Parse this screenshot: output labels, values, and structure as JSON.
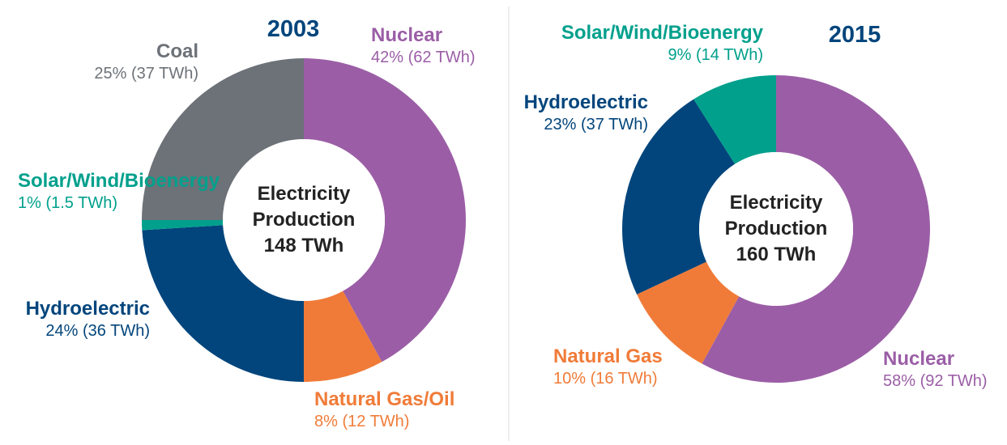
{
  "chart_data": [
    {
      "type": "donut",
      "title": "2003",
      "center_label": "Electricity Production",
      "total_label": "148 TWh",
      "categories": [
        "Nuclear",
        "Natural Gas/Oil",
        "Hydroelectric",
        "Solar/Wind/Bioenergy",
        "Coal"
      ],
      "values": [
        42,
        8,
        24,
        1,
        25
      ],
      "value_labels": [
        "42% (62 TWh)",
        "8% (12 TWh)",
        "24% (36 TWh)",
        "1% (1.5 TWh)",
        "25% (37 TWh)"
      ],
      "colors": [
        "#9b5ea6",
        "#f07b38",
        "#02457c",
        "#00a08c",
        "#6d7278"
      ]
    },
    {
      "type": "donut",
      "title": "2015",
      "center_label": "Electricity Production",
      "total_label": "160 TWh",
      "categories": [
        "Nuclear",
        "Natural Gas",
        "Hydroelectric",
        "Solar/Wind/Bioenergy"
      ],
      "values": [
        58,
        10,
        23,
        9
      ],
      "value_labels": [
        "58% (92 TWh)",
        "10% (16 TWh)",
        "23% (37 TWh)",
        "9% (14 TWh)"
      ],
      "colors": [
        "#9b5ea6",
        "#f07b38",
        "#02457c",
        "#00a08c"
      ]
    }
  ]
}
